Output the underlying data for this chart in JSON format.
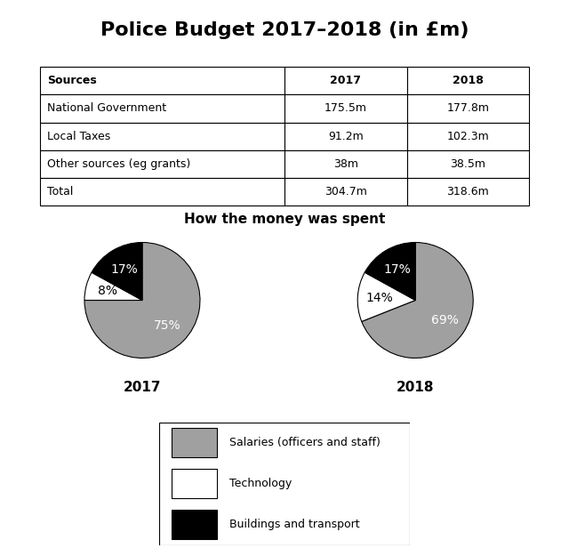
{
  "title": "Police Budget 2017–2018 (in £m)",
  "table": {
    "headers": [
      "Sources",
      "2017",
      "2018"
    ],
    "rows": [
      [
        "National Government",
        "175.5m",
        "177.8m"
      ],
      [
        "Local Taxes",
        "91.2m",
        "102.3m"
      ],
      [
        "Other sources (eg grants)",
        "38m",
        "38.5m"
      ],
      [
        "Total",
        "304.7m",
        "318.6m"
      ]
    ]
  },
  "chart_title": "How the money was spent",
  "pie_2017": {
    "values": [
      75,
      8,
      17
    ],
    "colors": [
      "#a0a0a0",
      "#ffffff",
      "#000000"
    ],
    "labels": [
      "75%",
      "8%",
      "17%"
    ],
    "label_colors": [
      "white",
      "black",
      "white"
    ],
    "label": "2017"
  },
  "pie_2018": {
    "values": [
      69,
      14,
      17
    ],
    "colors": [
      "#a0a0a0",
      "#ffffff",
      "#000000"
    ],
    "labels": [
      "69%",
      "14%",
      "17%"
    ],
    "label_colors": [
      "white",
      "black",
      "white"
    ],
    "label": "2018"
  },
  "legend_items": [
    {
      "label": "Salaries (officers and staff)",
      "color": "#a0a0a0"
    },
    {
      "label": "Technology",
      "color": "#ffffff"
    },
    {
      "label": "Buildings and transport",
      "color": "#000000"
    }
  ],
  "background_color": "#ffffff",
  "title_fontsize": 16,
  "table_fontsize": 9,
  "chart_title_fontsize": 11,
  "pie_label_fontsize": 10,
  "pie_year_fontsize": 11,
  "legend_fontsize": 9
}
